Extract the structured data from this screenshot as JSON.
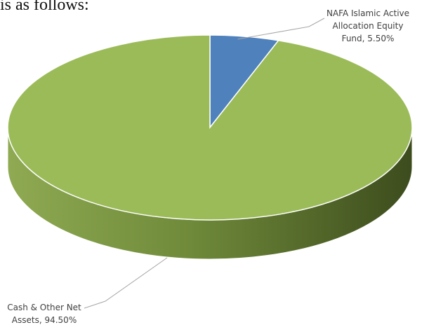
{
  "intro_text": "is as follows:",
  "chart_data": {
    "type": "pie",
    "style": "3d",
    "categories": [
      "NAFA Islamic Active Allocation Equity Fund",
      "Cash & Other Net Assets"
    ],
    "values": [
      5.5,
      94.5
    ],
    "unit": "%",
    "colors": [
      "#4f81bd",
      "#9bbb59"
    ],
    "side_colors": [
      "#3a6291",
      "#6f8a3a"
    ],
    "labels": [
      {
        "lines": [
          "NAFA Islamic Active",
          "Allocation Equity",
          "Fund, 5.50%"
        ]
      },
      {
        "lines": [
          "Cash & Other Net",
          "Assets, 94.50%"
        ]
      }
    ]
  }
}
